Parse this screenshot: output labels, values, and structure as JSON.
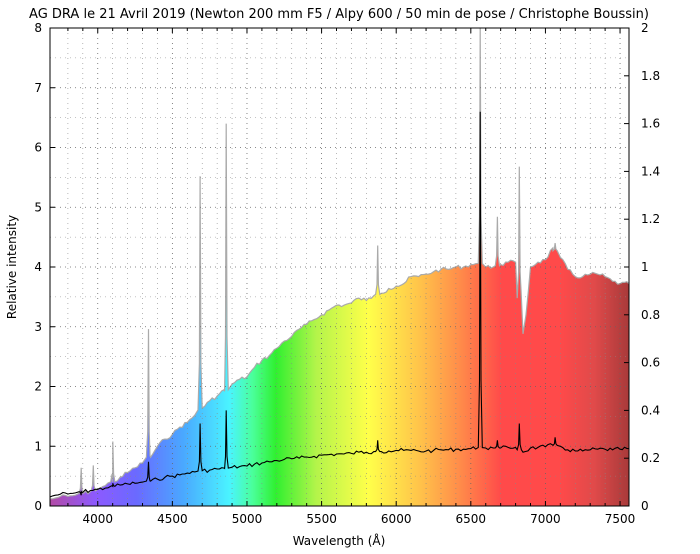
{
  "chart_data": {
    "type": "line",
    "title": "AG DRA le 21 Avril 2019 (Newton 200 mm F5 / Alpy 600 / 50 min de pose / Christophe Boussin)",
    "xlabel": "Wavelength (Å)",
    "ylabel": "Relative intensity",
    "xlim": [
      3680,
      7560
    ],
    "ylim": [
      0,
      8
    ],
    "y2lim": [
      0,
      2
    ],
    "xticks": [
      "4000",
      "4500",
      "5000",
      "5500",
      "6000",
      "6500",
      "7000",
      "7500"
    ],
    "yticks": [
      "0",
      "1",
      "2",
      "3",
      "4",
      "5",
      "6",
      "7",
      "8"
    ],
    "y2ticks": [
      "0",
      "0.2",
      "0.4",
      "0.6",
      "0.8",
      "1",
      "1.2",
      "1.4",
      "1.6",
      "1.8",
      "2"
    ],
    "grid": true,
    "series": [
      {
        "axis": "left",
        "color": "#000000",
        "points": [
          [
            3680,
            0.15
          ],
          [
            3700,
            0.17
          ],
          [
            3750,
            0.2
          ],
          [
            3800,
            0.2
          ],
          [
            3850,
            0.22
          ],
          [
            3890,
            0.24
          ],
          [
            3900,
            0.23
          ],
          [
            3950,
            0.26
          ],
          [
            4000,
            0.28
          ],
          [
            4050,
            0.3
          ],
          [
            4100,
            0.33
          ],
          [
            4150,
            0.35
          ],
          [
            4200,
            0.37
          ],
          [
            4250,
            0.38
          ],
          [
            4300,
            0.4
          ],
          [
            4350,
            0.42
          ],
          [
            4400,
            0.45
          ],
          [
            4450,
            0.48
          ],
          [
            4500,
            0.5
          ],
          [
            4550,
            0.52
          ],
          [
            4600,
            0.55
          ],
          [
            4650,
            0.57
          ],
          [
            4700,
            0.59
          ],
          [
            4750,
            0.6
          ],
          [
            4800,
            0.62
          ],
          [
            4850,
            0.63
          ],
          [
            4900,
            0.65
          ],
          [
            4950,
            0.66
          ],
          [
            5000,
            0.67
          ],
          [
            5050,
            0.7
          ],
          [
            5100,
            0.72
          ],
          [
            5150,
            0.74
          ],
          [
            5200,
            0.76
          ],
          [
            5250,
            0.78
          ],
          [
            5300,
            0.79
          ],
          [
            5350,
            0.8
          ],
          [
            5400,
            0.82
          ],
          [
            5450,
            0.83
          ],
          [
            5500,
            0.85
          ],
          [
            5550,
            0.86
          ],
          [
            5600,
            0.87
          ],
          [
            5650,
            0.87
          ],
          [
            5700,
            0.88
          ],
          [
            5750,
            0.9
          ],
          [
            5800,
            0.9
          ],
          [
            5850,
            0.91
          ],
          [
            5900,
            0.91
          ],
          [
            5950,
            0.92
          ],
          [
            6000,
            0.93
          ],
          [
            6050,
            0.93
          ],
          [
            6100,
            0.93
          ],
          [
            6150,
            0.92
          ],
          [
            6200,
            0.92
          ],
          [
            6250,
            0.93
          ],
          [
            6300,
            0.94
          ],
          [
            6350,
            0.94
          ],
          [
            6400,
            0.95
          ],
          [
            6450,
            0.95
          ],
          [
            6500,
            0.96
          ],
          [
            6550,
            0.98
          ],
          [
            6600,
            0.97
          ],
          [
            6650,
            0.97
          ],
          [
            6700,
            0.97
          ],
          [
            6750,
            0.98
          ],
          [
            6800,
            0.98
          ],
          [
            6850,
            0.9
          ],
          [
            6900,
            0.97
          ],
          [
            6950,
            0.98
          ],
          [
            7000,
            0.99
          ],
          [
            7050,
            1.02
          ],
          [
            7100,
            1.0
          ],
          [
            7150,
            0.94
          ],
          [
            7200,
            0.92
          ],
          [
            7250,
            0.92
          ],
          [
            7300,
            0.94
          ],
          [
            7350,
            0.95
          ],
          [
            7400,
            0.95
          ],
          [
            7450,
            0.94
          ],
          [
            7500,
            0.95
          ],
          [
            7560,
            0.96
          ]
        ],
        "lines": [
          [
            3889,
            0.18
          ],
          [
            4101,
            0.38
          ],
          [
            4340,
            0.74
          ],
          [
            4686,
            1.38
          ],
          [
            4861,
            1.6
          ],
          [
            5876,
            1.1
          ],
          [
            6563,
            6.6
          ],
          [
            6678,
            1.1
          ],
          [
            6825,
            1.38
          ],
          [
            7065,
            1.15
          ]
        ]
      },
      {
        "axis": "right",
        "color": "#aaaaaa",
        "fill": "rainbow",
        "points": [
          [
            3680,
            0.03
          ],
          [
            3700,
            0.03
          ],
          [
            3750,
            0.04
          ],
          [
            3800,
            0.04
          ],
          [
            3850,
            0.045
          ],
          [
            3900,
            0.055
          ],
          [
            3950,
            0.06
          ],
          [
            4000,
            0.07
          ],
          [
            4050,
            0.085
          ],
          [
            4100,
            0.1
          ],
          [
            4150,
            0.12
          ],
          [
            4200,
            0.14
          ],
          [
            4250,
            0.16
          ],
          [
            4300,
            0.18
          ],
          [
            4350,
            0.21
          ],
          [
            4400,
            0.25
          ],
          [
            4450,
            0.28
          ],
          [
            4500,
            0.3
          ],
          [
            4550,
            0.33
          ],
          [
            4600,
            0.35
          ],
          [
            4650,
            0.38
          ],
          [
            4700,
            0.41
          ],
          [
            4750,
            0.44
          ],
          [
            4800,
            0.46
          ],
          [
            4850,
            0.48
          ],
          [
            4900,
            0.51
          ],
          [
            4950,
            0.53
          ],
          [
            5000,
            0.54
          ],
          [
            5050,
            0.58
          ],
          [
            5100,
            0.61
          ],
          [
            5150,
            0.63
          ],
          [
            5200,
            0.66
          ],
          [
            5250,
            0.69
          ],
          [
            5300,
            0.71
          ],
          [
            5350,
            0.74
          ],
          [
            5400,
            0.76
          ],
          [
            5450,
            0.78
          ],
          [
            5500,
            0.8
          ],
          [
            5550,
            0.82
          ],
          [
            5600,
            0.84
          ],
          [
            5650,
            0.84
          ],
          [
            5700,
            0.85
          ],
          [
            5750,
            0.87
          ],
          [
            5800,
            0.86
          ],
          [
            5850,
            0.88
          ],
          [
            5900,
            0.89
          ],
          [
            5950,
            0.91
          ],
          [
            6000,
            0.92
          ],
          [
            6050,
            0.93
          ],
          [
            6100,
            0.96
          ],
          [
            6150,
            0.96
          ],
          [
            6200,
            0.97
          ],
          [
            6250,
            0.98
          ],
          [
            6300,
            0.99
          ],
          [
            6350,
            0.99
          ],
          [
            6400,
            1.0
          ],
          [
            6450,
            1.0
          ],
          [
            6500,
            1.01
          ],
          [
            6550,
            1.02
          ],
          [
            6600,
            1.0
          ],
          [
            6650,
            1.0
          ],
          [
            6700,
            1.01
          ],
          [
            6750,
            1.02
          ],
          [
            6800,
            1.02
          ],
          [
            6850,
            0.72
          ],
          [
            6870,
            0.8
          ],
          [
            6900,
            1.0
          ],
          [
            6950,
            1.02
          ],
          [
            7000,
            1.03
          ],
          [
            7050,
            1.08
          ],
          [
            7100,
            1.04
          ],
          [
            7150,
            0.99
          ],
          [
            7200,
            0.96
          ],
          [
            7250,
            0.96
          ],
          [
            7300,
            0.97
          ],
          [
            7350,
            0.97
          ],
          [
            7400,
            0.96
          ],
          [
            7450,
            0.94
          ],
          [
            7500,
            0.93
          ],
          [
            7560,
            0.93
          ]
        ],
        "lines": [
          [
            3889,
            0.16
          ],
          [
            3970,
            0.17
          ],
          [
            4101,
            0.27
          ],
          [
            4340,
            0.74
          ],
          [
            4686,
            1.38
          ],
          [
            4861,
            1.6
          ],
          [
            5876,
            1.09
          ],
          [
            6563,
            2.0
          ],
          [
            6678,
            1.21
          ],
          [
            6825,
            1.42
          ],
          [
            7065,
            1.1
          ]
        ]
      }
    ]
  }
}
